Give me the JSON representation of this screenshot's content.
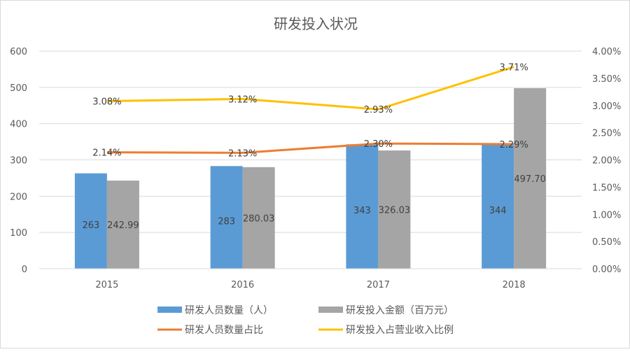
{
  "chart_data": {
    "type": "bar+line",
    "title": "研发投入状况",
    "categories": [
      "2015",
      "2016",
      "2017",
      "2018"
    ],
    "xlabel": "",
    "ylabel": "",
    "ylim": [
      0,
      600
    ],
    "yticks": [
      "0",
      "100",
      "200",
      "300",
      "400",
      "500",
      "600"
    ],
    "y2lim": [
      0,
      4.0
    ],
    "y2ticks": [
      "0.00%",
      "0.50%",
      "1.00%",
      "1.50%",
      "2.00%",
      "2.50%",
      "3.00%",
      "3.50%",
      "4.00%"
    ],
    "grid": true,
    "legend_position": "bottom",
    "series": [
      {
        "name": "研发人员数量（人）",
        "type": "bar",
        "axis": "left",
        "color": "#5b9bd5",
        "values": [
          263,
          283,
          343,
          344
        ],
        "labels": [
          "263",
          "283",
          "343",
          "344"
        ]
      },
      {
        "name": "研发投入金额（百万元）",
        "type": "bar",
        "axis": "left",
        "color": "#a5a5a5",
        "values": [
          242.99,
          280.03,
          326.03,
          497.7
        ],
        "labels": [
          "242.99",
          "280.03",
          "326.03",
          "497.70"
        ]
      },
      {
        "name": "研发人员数量占比",
        "type": "line",
        "axis": "right",
        "color": "#ed7d31",
        "values": [
          2.14,
          2.13,
          2.3,
          2.29
        ],
        "labels": [
          "2.14%",
          "2.13%",
          "2.30%",
          "2.29%"
        ]
      },
      {
        "name": "研发投入占营业收入比例",
        "type": "line",
        "axis": "right",
        "color": "#ffc000",
        "values": [
          3.08,
          3.12,
          2.93,
          3.71
        ],
        "labels": [
          "3.08%",
          "3.12%",
          "2.93%",
          "3.71%"
        ]
      }
    ]
  }
}
